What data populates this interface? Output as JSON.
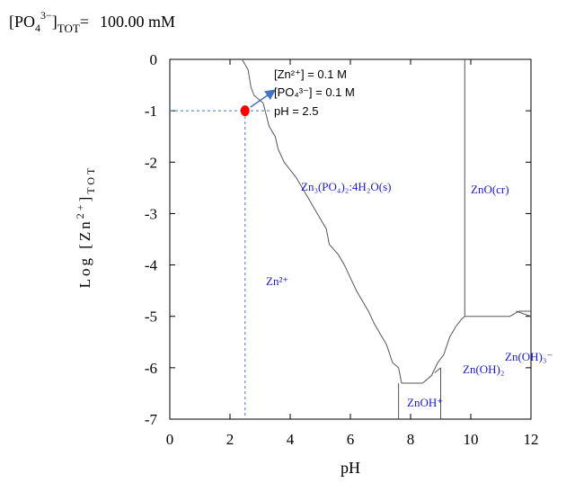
{
  "header": {
    "prefix": "[PO",
    "sub": "4",
    "sup": "3−",
    "close": "]",
    "tot": "TOT",
    "equals": "=",
    "value": "100.00 mM"
  },
  "chart_data": {
    "type": "line",
    "title": "[PO4 3−]TOT = 100.00 mM",
    "xlabel": "pH",
    "ylabel": "Log [Zn2+]TOT",
    "xlim": [
      0,
      12
    ],
    "ylim": [
      -7,
      0
    ],
    "x_ticks": [
      0,
      2,
      4,
      6,
      8,
      10,
      12
    ],
    "y_ticks": [
      0,
      -1,
      -2,
      -3,
      -4,
      -5,
      -6,
      -7
    ],
    "boundaries": {
      "zn3po4_solubility": [
        [
          2.4,
          0
        ],
        [
          2.6,
          -0.2
        ],
        [
          2.7,
          -0.55
        ],
        [
          2.8,
          -0.7
        ],
        [
          3.1,
          -0.85
        ],
        [
          3.3,
          -1.3
        ],
        [
          3.5,
          -1.5
        ],
        [
          3.6,
          -1.75
        ],
        [
          3.8,
          -2.0
        ],
        [
          4.0,
          -2.15
        ],
        [
          4.2,
          -2.3
        ],
        [
          4.4,
          -2.5
        ],
        [
          4.6,
          -2.7
        ],
        [
          4.8,
          -2.9
        ],
        [
          5.0,
          -3.1
        ],
        [
          5.2,
          -3.3
        ],
        [
          5.3,
          -3.6
        ],
        [
          5.6,
          -3.8
        ],
        [
          5.8,
          -4.0
        ],
        [
          6.0,
          -4.25
        ],
        [
          6.2,
          -4.5
        ],
        [
          6.4,
          -4.7
        ],
        [
          6.6,
          -4.9
        ],
        [
          6.8,
          -5.15
        ],
        [
          7.0,
          -5.35
        ],
        [
          7.2,
          -5.55
        ],
        [
          7.4,
          -5.9
        ],
        [
          7.6,
          -6.0
        ],
        [
          7.7,
          -6.3
        ]
      ],
      "znoh_floor": [
        [
          7.7,
          -6.3
        ],
        [
          8.4,
          -6.3
        ]
      ],
      "right_rise": [
        [
          8.4,
          -6.3
        ],
        [
          8.7,
          -6.15
        ],
        [
          8.9,
          -5.9
        ],
        [
          9.1,
          -5.75
        ],
        [
          9.3,
          -5.4
        ],
        [
          9.5,
          -5.2
        ],
        [
          9.7,
          -5.05
        ],
        [
          9.8,
          -5.0
        ]
      ],
      "zno_vertical": [
        [
          9.8,
          0
        ],
        [
          9.8,
          -5.0
        ]
      ],
      "zno_lower": [
        [
          9.8,
          -5.0
        ],
        [
          11.3,
          -5.0
        ],
        [
          11.6,
          -4.9
        ],
        [
          12,
          -4.9
        ]
      ],
      "zn2_znoh_divider": [
        [
          7.6,
          -6.3
        ],
        [
          7.6,
          -7
        ]
      ],
      "znoh_znoh2_divider": [
        [
          9.0,
          -6.0
        ],
        [
          9.0,
          -7
        ]
      ],
      "znoh2_step": [
        [
          8.8,
          -6.1
        ],
        [
          9.0,
          -6.0
        ]
      ],
      "right_inner": [
        [
          11.5,
          -4.9
        ],
        [
          12,
          -5.0
        ]
      ]
    },
    "marker": {
      "x": 2.5,
      "y": -1,
      "color": "#ff0000"
    },
    "annotation": {
      "lines": [
        "[Zn²⁺] = 0.1 M",
        "[PO₄³⁻] = 0.1 M",
        "pH = 2.5"
      ]
    },
    "region_labels": {
      "zn3": "Zn₃(PO₄)₂:4H₂O(s)",
      "zno": "ZnO(cr)",
      "zn2": "Zn²⁺",
      "znoh2": "Zn(OH)₂",
      "znoh3": "Zn(OH)₃⁻",
      "znoh": "ZnOH⁺"
    },
    "colors": {
      "axis": "#000000",
      "line": "#555555",
      "guide": "#4472c4",
      "arrow": "#4472c4",
      "region": "#1a1acc"
    }
  }
}
